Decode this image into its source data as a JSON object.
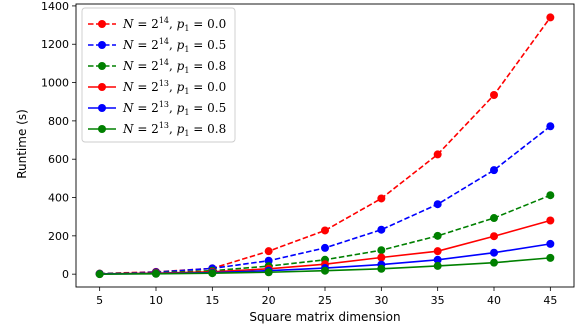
{
  "chart_data": {
    "type": "line",
    "xlabel": "Square matrix dimension",
    "ylabel": "Runtime (s)",
    "x": [
      5,
      10,
      15,
      20,
      25,
      30,
      35,
      40,
      45
    ],
    "xticks": [
      5,
      10,
      15,
      20,
      25,
      30,
      35,
      40,
      45
    ],
    "yticks": [
      0,
      200,
      400,
      600,
      800,
      1000,
      1200,
      1400
    ],
    "xlim": [
      2.9,
      47.1
    ],
    "ylim": [
      -67,
      1410
    ],
    "legend_position": "top-left",
    "grid": false,
    "series": [
      {
        "name": "N = 2^14, p1 = 0.0",
        "N_exp": "14",
        "p1": "0.0",
        "color": "#ff0000",
        "dashed": true,
        "values": [
          3,
          12,
          30,
          120,
          228,
          395,
          625,
          935,
          1340
        ]
      },
      {
        "name": "N = 2^14, p1 = 0.5",
        "N_exp": "14",
        "p1": "0.5",
        "color": "#0000ff",
        "dashed": true,
        "values": [
          2,
          10,
          30,
          70,
          137,
          232,
          365,
          543,
          772
        ]
      },
      {
        "name": "N = 2^14, p1 = 0.8",
        "N_exp": "14",
        "p1": "0.8",
        "color": "#008000",
        "dashed": true,
        "values": [
          2,
          7,
          18,
          42,
          75,
          125,
          200,
          293,
          412
        ]
      },
      {
        "name": "N = 2^13, p1 = 0.0",
        "N_exp": "13",
        "p1": "0.0",
        "color": "#ff0000",
        "dashed": false,
        "values": [
          1,
          5,
          12,
          28,
          52,
          87,
          120,
          198,
          280
        ]
      },
      {
        "name": "N = 2^13, p1 = 0.5",
        "N_exp": "13",
        "p1": "0.5",
        "color": "#0000ff",
        "dashed": false,
        "values": [
          1,
          3,
          8,
          18,
          32,
          50,
          75,
          112,
          158
        ]
      },
      {
        "name": "N = 2^13, p1 = 0.8",
        "N_exp": "13",
        "p1": "0.8",
        "color": "#008000",
        "dashed": false,
        "values": [
          0,
          2,
          5,
          10,
          18,
          28,
          43,
          60,
          85
        ]
      }
    ]
  }
}
